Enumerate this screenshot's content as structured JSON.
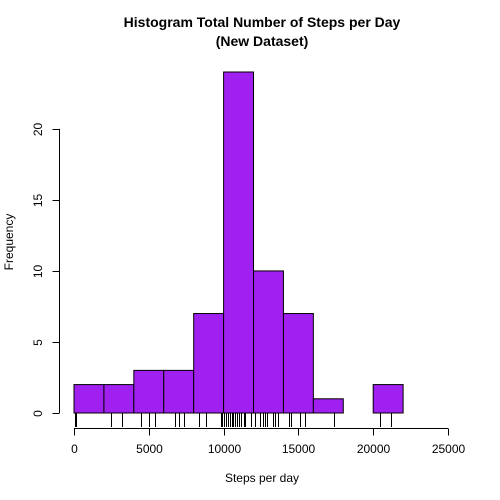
{
  "chart_data": {
    "type": "bar",
    "title": "Histogram Total Number of Steps per Day",
    "subtitle": "(New Dataset)",
    "xlabel": "Steps per day",
    "ylabel": "Frequency",
    "bin_edges": [
      0,
      2000,
      4000,
      6000,
      8000,
      10000,
      12000,
      14000,
      16000,
      18000,
      20000,
      22000
    ],
    "values": [
      2,
      2,
      3,
      3,
      7,
      24,
      10,
      7,
      1,
      0,
      2
    ],
    "xlim": [
      0,
      25000
    ],
    "ylim": [
      0,
      24
    ],
    "x_ticks": [
      0,
      5000,
      10000,
      15000,
      20000,
      25000
    ],
    "y_ticks": [
      0,
      5,
      10,
      15,
      20
    ],
    "rug": [
      41,
      126,
      2492,
      3219,
      4472,
      5018,
      5441,
      6778,
      7047,
      7336,
      8334,
      8355,
      8821,
      9819,
      9900,
      10000,
      10056,
      10139,
      10183,
      10304,
      10395,
      10439,
      10571,
      10600,
      10765,
      10766,
      10890,
      11015,
      11162,
      11352,
      11458,
      11829,
      11834,
      12116,
      12426,
      12608,
      12787,
      12883,
      13294,
      13452,
      13646,
      14339,
      14478,
      15084,
      15098,
      15110,
      15414,
      17382,
      20427,
      21194
    ],
    "bar_color": "#A020F0",
    "bar_stroke": "#000000",
    "grid": false,
    "legend": "none"
  }
}
